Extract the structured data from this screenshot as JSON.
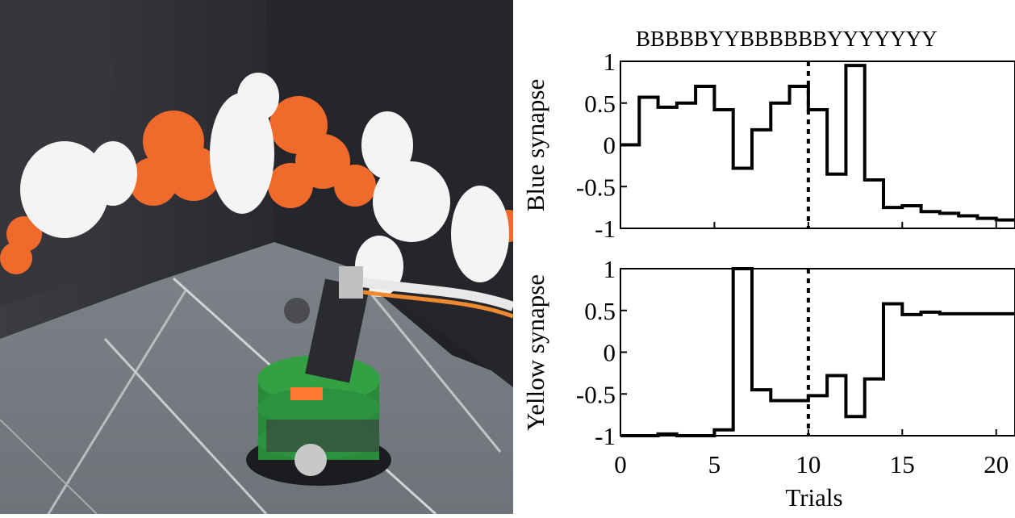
{
  "photo": {
    "description_icon": "robot-arena-photo"
  },
  "chart_data": [
    {
      "type": "line",
      "title": "",
      "ylabel": "Blue synapse",
      "xlabel": "",
      "xlim": [
        0,
        21
      ],
      "ylim": [
        -1,
        1
      ],
      "yticks": [
        "1",
        "0.5",
        "0",
        "-0.5",
        "-1"
      ],
      "sequence_label": "BBBBBYYBBBBBBYYYYYYY",
      "marker_x": 10,
      "step": true,
      "series": [
        {
          "x": [
            0,
            1,
            2,
            3,
            4,
            5,
            6,
            7,
            8,
            9,
            10,
            11,
            12,
            13,
            14,
            15,
            16,
            17,
            18,
            19,
            20,
            21
          ],
          "values": [
            0,
            0.57,
            0.45,
            0.5,
            0.7,
            0.42,
            -0.28,
            0.18,
            0.5,
            0.7,
            0.42,
            -0.35,
            0.95,
            -0.42,
            -0.75,
            -0.73,
            -0.8,
            -0.82,
            -0.85,
            -0.88,
            -0.9,
            -0.9
          ]
        }
      ]
    },
    {
      "type": "line",
      "title": "",
      "ylabel": "Yellow synapse",
      "xlabel": "Trials",
      "xlim": [
        0,
        21
      ],
      "ylim": [
        -1,
        1
      ],
      "xticks": [
        "0",
        "5",
        "10",
        "15",
        "20"
      ],
      "yticks": [
        "1",
        "0.5",
        "0",
        "-0.5",
        "-1"
      ],
      "marker_x": 10,
      "step": true,
      "series": [
        {
          "x": [
            0,
            1,
            2,
            3,
            4,
            5,
            6,
            7,
            8,
            9,
            10,
            11,
            12,
            13,
            14,
            15,
            16,
            17,
            18,
            19,
            20,
            21
          ],
          "values": [
            -1,
            -1,
            -0.98,
            -1,
            -1,
            -0.93,
            1,
            -0.45,
            -0.58,
            -0.58,
            -0.52,
            -0.28,
            -0.77,
            -0.32,
            0.58,
            0.45,
            0.48,
            0.46,
            0.46,
            0.46,
            0.46,
            0.46
          ]
        }
      ]
    }
  ]
}
